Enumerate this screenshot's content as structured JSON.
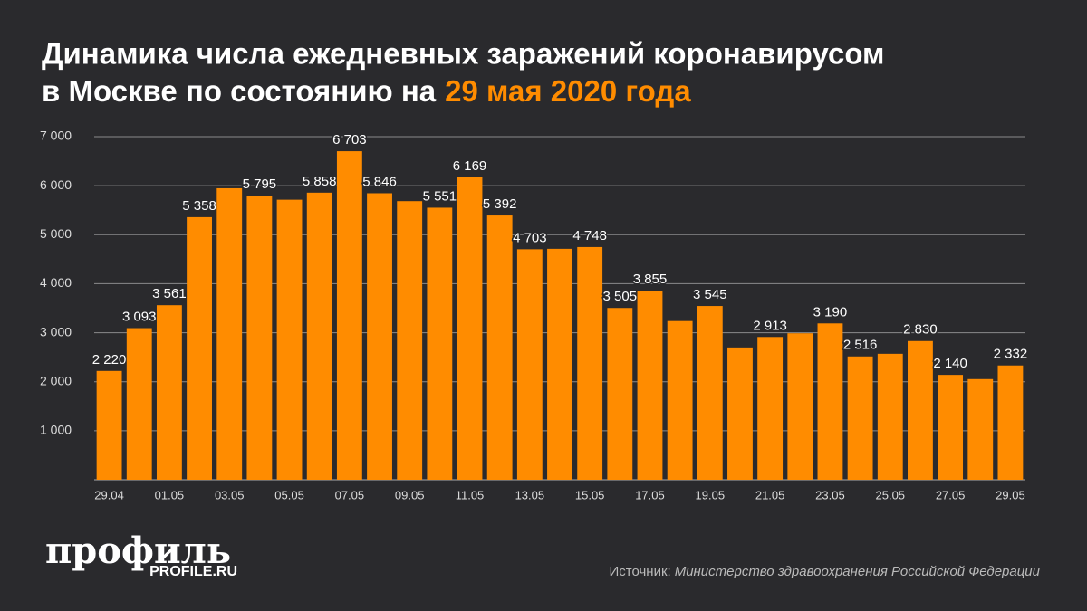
{
  "chart_data": {
    "type": "bar",
    "title": [
      "Динамика числа ежедневных заражений коронавирусом",
      "в Москве по состоянию на"
    ],
    "title_highlight": "29 мая 2020 года",
    "categories": [
      "29.04",
      null,
      "01.05",
      null,
      "03.05",
      null,
      "05.05",
      null,
      "07.05",
      null,
      "09.05",
      null,
      "11.05",
      null,
      "13.05",
      null,
      "15.05",
      null,
      "17.05",
      null,
      "19.05",
      null,
      "21.05",
      null,
      "23.05",
      null,
      "25.05",
      null,
      "27.05",
      null,
      "29.05"
    ],
    "values": [
      2220,
      3093,
      3561,
      5358,
      5948,
      5795,
      5714,
      5858,
      6703,
      5846,
      5685,
      5551,
      6169,
      5392,
      4703,
      4712,
      4748,
      3505,
      3855,
      3238,
      3545,
      2699,
      2913,
      2988,
      3190,
      2516,
      2570,
      2830,
      2140,
      2054,
      2332
    ],
    "value_labels": [
      "2 220",
      "3 093",
      "3 561",
      "5 358",
      null,
      "5 795",
      null,
      "5 858",
      "6 703",
      "5 846",
      null,
      "5 551",
      "6 169",
      "5 392",
      "4 703",
      null,
      "4 748",
      "3 505",
      "3 855",
      null,
      "3 545",
      null,
      "2 913",
      null,
      "3 190",
      "2 516",
      null,
      "2 830",
      "2 140",
      null,
      "2 332"
    ],
    "color": "#ff8c00",
    "ylim": [
      0,
      7000
    ],
    "yticks": [
      {
        "value": 1000,
        "label": "1 000"
      },
      {
        "value": 2000,
        "label": "2 000"
      },
      {
        "value": 3000,
        "label": "3 000"
      },
      {
        "value": 4000,
        "label": "4 000"
      },
      {
        "value": 5000,
        "label": "5 000"
      },
      {
        "value": 6000,
        "label": "6 000"
      },
      {
        "value": 7000,
        "label": "7 000"
      }
    ],
    "grid": true,
    "source_prefix": "Источник:",
    "source": "Министерство здравоохранения Российской Федерации",
    "logo": "профиль",
    "logo_url": "PROFILE.RU"
  }
}
